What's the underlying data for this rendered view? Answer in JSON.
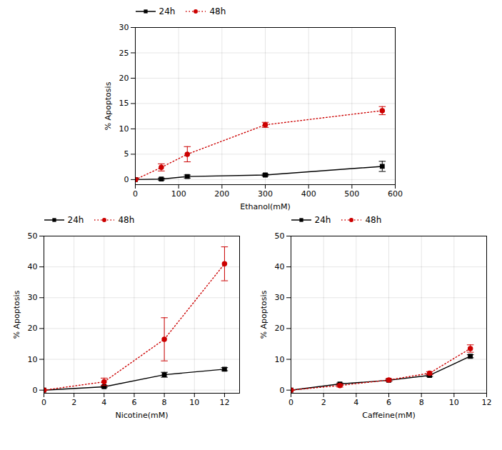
{
  "chart_data": [
    {
      "type": "line",
      "xlabel": "Ethanol(mM)",
      "ylabel": "% Apoptosis",
      "x": [
        0,
        60,
        120,
        300,
        570
      ],
      "series": [
        {
          "name": "24h",
          "color": "#000000",
          "marker": "square",
          "line_style": "solid",
          "values": [
            0.0,
            0.1,
            0.6,
            0.9,
            2.6
          ],
          "yerr": [
            0.05,
            0.2,
            0.3,
            0.2,
            1.0
          ]
        },
        {
          "name": "48h",
          "color": "#cc0000",
          "marker": "circle",
          "line_style": "dotted",
          "values": [
            0.0,
            2.4,
            5.0,
            10.8,
            13.6
          ],
          "yerr": [
            0.05,
            0.7,
            1.5,
            0.5,
            0.8
          ]
        }
      ],
      "xlim": [
        0,
        600
      ],
      "ylim": [
        -1,
        30
      ],
      "xticks": [
        0,
        100,
        200,
        300,
        400,
        500,
        600
      ],
      "yticks": [
        0,
        5,
        10,
        15,
        20,
        25,
        30
      ],
      "grid": true,
      "legend": "upper left"
    },
    {
      "type": "line",
      "xlabel": "Nicotine(mM)",
      "ylabel": "% Apoptosis",
      "x": [
        0,
        4,
        8,
        12
      ],
      "series": [
        {
          "name": "24h",
          "color": "#000000",
          "marker": "square",
          "line_style": "solid",
          "values": [
            0.0,
            1.1,
            5.0,
            6.8
          ],
          "yerr": [
            0.05,
            0.3,
            0.8,
            0.5
          ]
        },
        {
          "name": "48h",
          "color": "#cc0000",
          "marker": "circle",
          "line_style": "dotted",
          "values": [
            0.0,
            2.7,
            16.5,
            41.0
          ],
          "yerr": [
            0.05,
            1.2,
            7.0,
            5.5
          ]
        }
      ],
      "xlim": [
        0,
        13
      ],
      "ylim": [
        -1,
        50
      ],
      "xticks": [
        0,
        2,
        4,
        6,
        8,
        10,
        12
      ],
      "yticks": [
        0,
        10,
        20,
        30,
        40,
        50
      ],
      "grid": true,
      "legend": "upper left"
    },
    {
      "type": "line",
      "xlabel": "Caffeine(mM)",
      "ylabel": "% Apoptosis",
      "x": [
        0,
        3,
        6,
        8.5,
        11
      ],
      "series": [
        {
          "name": "24h",
          "color": "#000000",
          "marker": "square",
          "line_style": "solid",
          "values": [
            0.0,
            2.0,
            3.2,
            4.8,
            11.0
          ],
          "yerr": [
            0.05,
            0.3,
            0.3,
            0.4,
            0.5
          ]
        },
        {
          "name": "48h",
          "color": "#cc0000",
          "marker": "circle",
          "line_style": "dotted",
          "values": [
            0.0,
            1.5,
            3.3,
            5.5,
            13.5
          ],
          "yerr": [
            0.05,
            0.5,
            0.4,
            0.5,
            1.2
          ]
        }
      ],
      "xlim": [
        0,
        12
      ],
      "ylim": [
        -1,
        50
      ],
      "xticks": [
        0,
        2,
        4,
        6,
        8,
        10,
        12
      ],
      "yticks": [
        0,
        10,
        20,
        30,
        40,
        50
      ],
      "grid": true,
      "legend": "upper left"
    }
  ]
}
